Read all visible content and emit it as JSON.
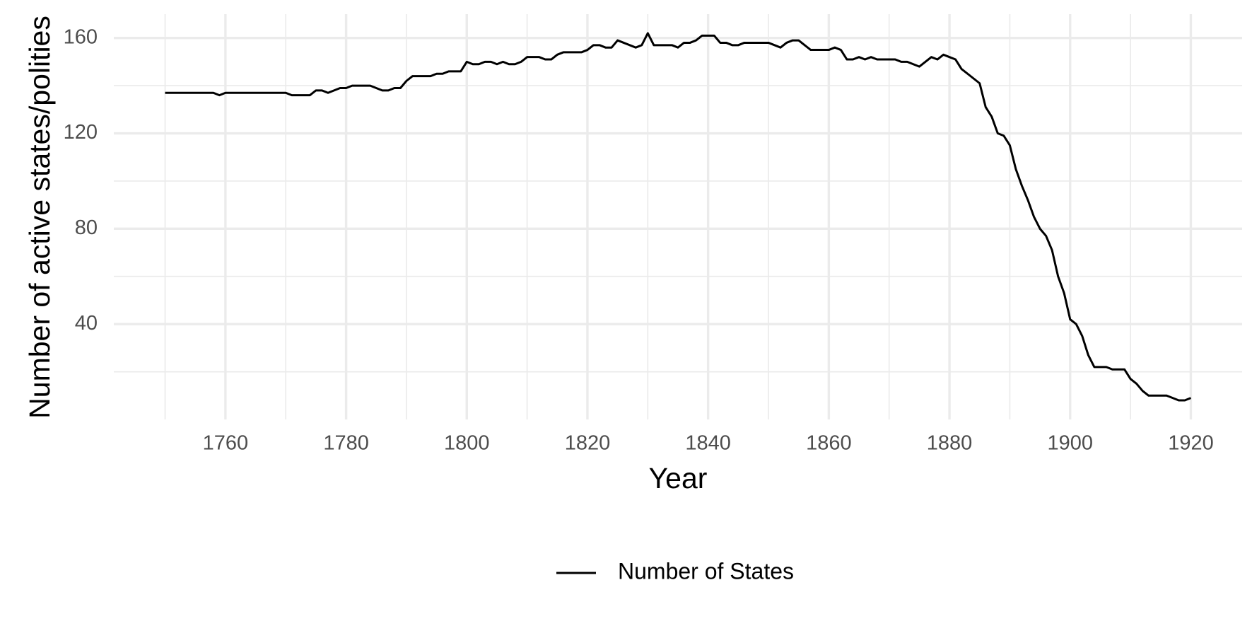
{
  "chart_data": {
    "type": "line",
    "x_label": "Year",
    "y_label": "Number of active states/polities",
    "x": [
      1750,
      1751,
      1752,
      1753,
      1754,
      1755,
      1756,
      1757,
      1758,
      1759,
      1760,
      1761,
      1762,
      1763,
      1764,
      1765,
      1766,
      1767,
      1768,
      1769,
      1770,
      1771,
      1772,
      1773,
      1774,
      1775,
      1776,
      1777,
      1778,
      1779,
      1780,
      1781,
      1782,
      1783,
      1784,
      1785,
      1786,
      1787,
      1788,
      1789,
      1790,
      1791,
      1792,
      1793,
      1794,
      1795,
      1796,
      1797,
      1798,
      1799,
      1800,
      1801,
      1802,
      1803,
      1804,
      1805,
      1806,
      1807,
      1808,
      1809,
      1810,
      1811,
      1812,
      1813,
      1814,
      1815,
      1816,
      1817,
      1818,
      1819,
      1820,
      1821,
      1822,
      1823,
      1824,
      1825,
      1826,
      1827,
      1828,
      1829,
      1830,
      1831,
      1832,
      1833,
      1834,
      1835,
      1836,
      1837,
      1838,
      1839,
      1840,
      1841,
      1842,
      1843,
      1844,
      1845,
      1846,
      1847,
      1848,
      1849,
      1850,
      1851,
      1852,
      1853,
      1854,
      1855,
      1856,
      1857,
      1858,
      1859,
      1860,
      1861,
      1862,
      1863,
      1864,
      1865,
      1866,
      1867,
      1868,
      1869,
      1870,
      1871,
      1872,
      1873,
      1874,
      1875,
      1876,
      1877,
      1878,
      1879,
      1880,
      1881,
      1882,
      1883,
      1884,
      1885,
      1886,
      1887,
      1888,
      1889,
      1890,
      1891,
      1892,
      1893,
      1894,
      1895,
      1896,
      1897,
      1898,
      1899,
      1900,
      1901,
      1902,
      1903,
      1904,
      1905,
      1906,
      1907,
      1908,
      1909,
      1910,
      1911,
      1912,
      1913,
      1914,
      1915,
      1916,
      1917,
      1918,
      1919,
      1920
    ],
    "series": [
      {
        "name": "Number of States",
        "color": "#000000",
        "values": [
          137,
          137,
          137,
          137,
          137,
          137,
          137,
          137,
          137,
          136,
          137,
          137,
          137,
          137,
          137,
          137,
          137,
          137,
          137,
          137,
          137,
          136,
          136,
          136,
          136,
          138,
          138,
          137,
          138,
          139,
          139,
          140,
          140,
          140,
          140,
          139,
          138,
          138,
          139,
          139,
          142,
          144,
          144,
          144,
          144,
          145,
          145,
          146,
          146,
          146,
          150,
          149,
          149,
          150,
          150,
          149,
          150,
          149,
          149,
          150,
          152,
          152,
          152,
          151,
          151,
          153,
          154,
          154,
          154,
          154,
          155,
          157,
          157,
          156,
          156,
          159,
          158,
          157,
          156,
          157,
          162,
          157,
          157,
          157,
          157,
          156,
          158,
          158,
          159,
          161,
          161,
          161,
          158,
          158,
          157,
          157,
          158,
          158,
          158,
          158,
          158,
          157,
          156,
          158,
          159,
          159,
          157,
          155,
          155,
          155,
          155,
          156,
          155,
          151,
          151,
          152,
          151,
          152,
          151,
          151,
          151,
          151,
          150,
          150,
          149,
          148,
          150,
          152,
          151,
          153,
          152,
          151,
          147,
          145,
          143,
          141,
          131,
          127,
          120,
          119,
          115,
          105,
          98,
          92,
          85,
          80,
          77,
          71,
          60,
          53,
          42,
          40,
          35,
          27,
          22,
          22,
          22,
          21,
          21,
          21,
          17,
          15,
          12,
          10,
          10,
          10,
          10,
          9,
          8,
          8,
          9
        ]
      }
    ],
    "xlim": [
      1741.5,
      1928.5
    ],
    "ylim": [
      0,
      170
    ],
    "xticks": [
      1760,
      1780,
      1800,
      1820,
      1840,
      1860,
      1880,
      1900,
      1920
    ],
    "yticks": [
      40,
      80,
      120,
      160
    ],
    "x_minor_ticks": [
      1750,
      1770,
      1790,
      1810,
      1830,
      1850,
      1870,
      1890,
      1910
    ],
    "y_minor_ticks": [
      20,
      60,
      100,
      140
    ],
    "grid": true,
    "legend_position": "bottom"
  }
}
